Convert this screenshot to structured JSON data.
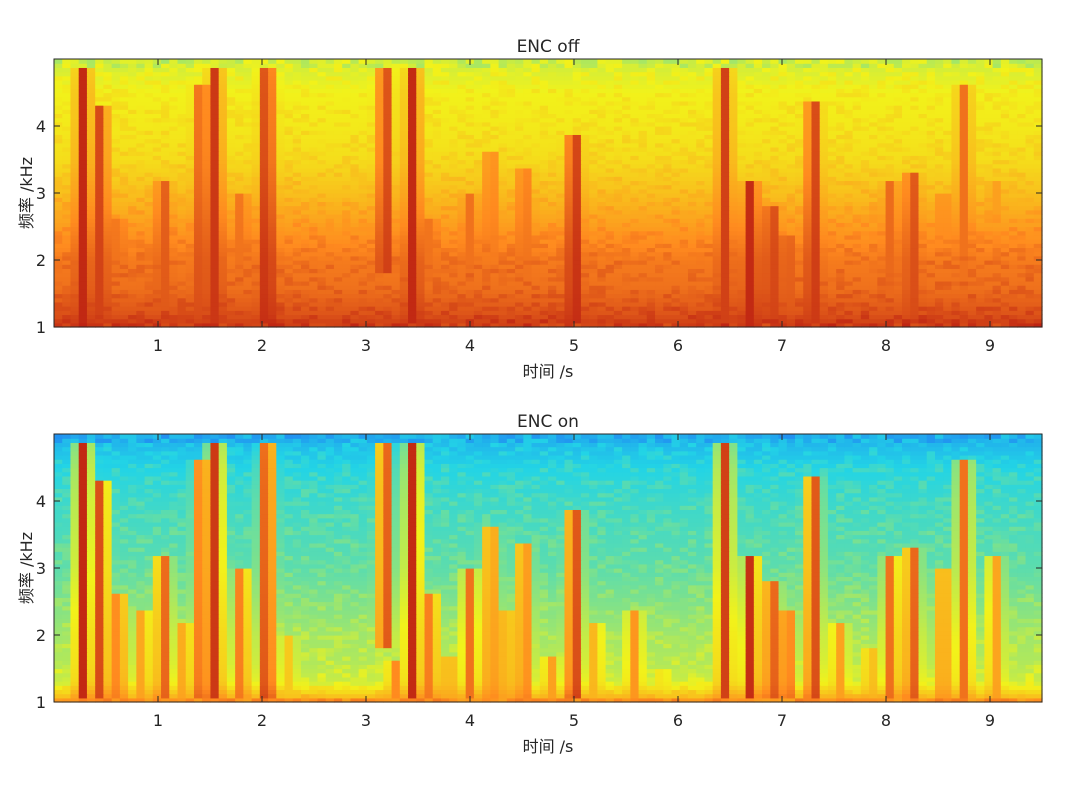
{
  "chart_data": [
    {
      "type": "heatmap",
      "title": "ENC off",
      "xlabel": "时间 /s",
      "ylabel": "频率 /kHz",
      "xlim": [
        0,
        9.5
      ],
      "ylim": [
        1,
        5
      ],
      "xticks": [
        1,
        2,
        3,
        4,
        5,
        6,
        7,
        8,
        9
      ],
      "yticks": [
        1,
        2,
        3,
        4
      ],
      "colormap": "jet",
      "colors": {
        "low": "#1f3fff",
        "mid_low": "#22d4e6",
        "mid": "#f2f21a",
        "mid_high": "#ff8a1f",
        "high": "#b21010"
      },
      "background_level": {
        "frequency_khz": [
          1.0,
          1.2,
          1.6,
          2.0,
          2.4,
          3.0,
          3.5,
          4.0,
          4.5,
          5.0
        ],
        "level": [
          0.92,
          0.86,
          0.8,
          0.78,
          0.72,
          0.62,
          0.55,
          0.52,
          0.5,
          0.45
        ]
      },
      "speech_events": [
        {
          "t": 0.28,
          "f_low": 1.05,
          "f_high": 4.9,
          "strength": 0.95
        },
        {
          "t": 0.45,
          "f_low": 1.05,
          "f_high": 4.3,
          "strength": 0.9
        },
        {
          "t": 0.62,
          "f_low": 1.05,
          "f_high": 2.6,
          "strength": 0.8
        },
        {
          "t": 0.85,
          "f_low": 1.05,
          "f_high": 2.4,
          "strength": 0.7
        },
        {
          "t": 1.05,
          "f_low": 1.05,
          "f_high": 3.2,
          "strength": 0.85
        },
        {
          "t": 1.25,
          "f_low": 1.05,
          "f_high": 2.2,
          "strength": 0.7
        },
        {
          "t": 1.42,
          "f_low": 1.05,
          "f_high": 4.6,
          "strength": 0.88
        },
        {
          "t": 1.55,
          "f_low": 1.05,
          "f_high": 4.9,
          "strength": 0.92
        },
        {
          "t": 1.8,
          "f_low": 1.05,
          "f_high": 3.0,
          "strength": 0.8
        },
        {
          "t": 2.05,
          "f_low": 1.05,
          "f_high": 4.9,
          "strength": 0.95
        },
        {
          "t": 2.25,
          "f_low": 1.05,
          "f_high": 2.0,
          "strength": 0.6
        },
        {
          "t": 3.18,
          "f_low": 1.8,
          "f_high": 4.9,
          "strength": 0.92
        },
        {
          "t": 3.28,
          "f_low": 1.05,
          "f_high": 1.6,
          "strength": 0.75
        },
        {
          "t": 3.45,
          "f_low": 1.05,
          "f_high": 4.9,
          "strength": 0.95
        },
        {
          "t": 3.62,
          "f_low": 1.05,
          "f_high": 2.6,
          "strength": 0.8
        },
        {
          "t": 3.8,
          "f_low": 1.05,
          "f_high": 1.7,
          "strength": 0.7
        },
        {
          "t": 4.0,
          "f_low": 1.05,
          "f_high": 3.0,
          "strength": 0.8
        },
        {
          "t": 4.2,
          "f_low": 1.05,
          "f_high": 3.6,
          "strength": 0.78
        },
        {
          "t": 4.35,
          "f_low": 1.05,
          "f_high": 2.4,
          "strength": 0.72
        },
        {
          "t": 4.52,
          "f_low": 1.05,
          "f_high": 3.4,
          "strength": 0.8
        },
        {
          "t": 4.78,
          "f_low": 1.05,
          "f_high": 1.7,
          "strength": 0.7
        },
        {
          "t": 5.0,
          "f_low": 1.05,
          "f_high": 3.9,
          "strength": 0.95
        },
        {
          "t": 5.2,
          "f_low": 1.05,
          "f_high": 2.2,
          "strength": 0.65
        },
        {
          "t": 5.58,
          "f_low": 1.05,
          "f_high": 2.4,
          "strength": 0.72
        },
        {
          "t": 5.85,
          "f_low": 1.05,
          "f_high": 1.5,
          "strength": 0.55
        },
        {
          "t": 6.45,
          "f_low": 1.05,
          "f_high": 4.9,
          "strength": 0.9
        },
        {
          "t": 6.7,
          "f_low": 1.05,
          "f_high": 3.2,
          "strength": 0.95
        },
        {
          "t": 6.9,
          "f_low": 1.05,
          "f_high": 2.8,
          "strength": 0.9
        },
        {
          "t": 7.05,
          "f_low": 1.05,
          "f_high": 2.4,
          "strength": 0.85
        },
        {
          "t": 7.3,
          "f_low": 1.05,
          "f_high": 4.4,
          "strength": 0.92
        },
        {
          "t": 7.55,
          "f_low": 1.05,
          "f_high": 2.2,
          "strength": 0.7
        },
        {
          "t": 7.85,
          "f_low": 1.05,
          "f_high": 1.8,
          "strength": 0.65
        },
        {
          "t": 8.05,
          "f_low": 1.05,
          "f_high": 3.2,
          "strength": 0.82
        },
        {
          "t": 8.25,
          "f_low": 1.05,
          "f_high": 3.3,
          "strength": 0.88
        },
        {
          "t": 8.55,
          "f_low": 1.05,
          "f_high": 3.0,
          "strength": 0.75
        },
        {
          "t": 8.75,
          "f_low": 1.05,
          "f_high": 4.6,
          "strength": 0.8
        },
        {
          "t": 9.05,
          "f_low": 1.05,
          "f_high": 3.2,
          "strength": 0.7
        }
      ]
    },
    {
      "type": "heatmap",
      "title": "ENC on",
      "xlabel": "时间 /s",
      "ylabel": "频率 /kHz",
      "xlim": [
        0,
        9.5
      ],
      "ylim": [
        1,
        5
      ],
      "xticks": [
        1,
        2,
        3,
        4,
        5,
        6,
        7,
        8,
        9
      ],
      "yticks": [
        1,
        2,
        3,
        4
      ],
      "colormap": "jet",
      "colors": {
        "low": "#1f3fff",
        "mid_low": "#22d4e6",
        "mid": "#f2f21a",
        "mid_high": "#ff8a1f",
        "high": "#b21010"
      },
      "background_level": {
        "frequency_khz": [
          1.0,
          1.1,
          1.3,
          1.6,
          2.0,
          2.5,
          3.0,
          3.5,
          4.0,
          4.5,
          5.0
        ],
        "level": [
          0.8,
          0.6,
          0.45,
          0.42,
          0.4,
          0.36,
          0.32,
          0.3,
          0.28,
          0.25,
          0.18
        ]
      },
      "speech_events": [
        {
          "t": 0.28,
          "f_low": 1.05,
          "f_high": 4.9,
          "strength": 0.95
        },
        {
          "t": 0.45,
          "f_low": 1.05,
          "f_high": 4.3,
          "strength": 0.9
        },
        {
          "t": 0.62,
          "f_low": 1.05,
          "f_high": 2.6,
          "strength": 0.8
        },
        {
          "t": 0.85,
          "f_low": 1.05,
          "f_high": 2.4,
          "strength": 0.7
        },
        {
          "t": 1.05,
          "f_low": 1.05,
          "f_high": 3.2,
          "strength": 0.85
        },
        {
          "t": 1.25,
          "f_low": 1.05,
          "f_high": 2.2,
          "strength": 0.7
        },
        {
          "t": 1.42,
          "f_low": 1.05,
          "f_high": 4.6,
          "strength": 0.88
        },
        {
          "t": 1.55,
          "f_low": 1.05,
          "f_high": 4.9,
          "strength": 0.92
        },
        {
          "t": 1.8,
          "f_low": 1.05,
          "f_high": 3.0,
          "strength": 0.8
        },
        {
          "t": 2.05,
          "f_low": 1.05,
          "f_high": 4.9,
          "strength": 0.95
        },
        {
          "t": 2.25,
          "f_low": 1.05,
          "f_high": 2.0,
          "strength": 0.6
        },
        {
          "t": 3.18,
          "f_low": 1.8,
          "f_high": 4.9,
          "strength": 0.92
        },
        {
          "t": 3.28,
          "f_low": 1.05,
          "f_high": 1.6,
          "strength": 0.75
        },
        {
          "t": 3.45,
          "f_low": 1.05,
          "f_high": 4.9,
          "strength": 0.95
        },
        {
          "t": 3.62,
          "f_low": 1.05,
          "f_high": 2.6,
          "strength": 0.8
        },
        {
          "t": 3.8,
          "f_low": 1.05,
          "f_high": 1.7,
          "strength": 0.7
        },
        {
          "t": 4.0,
          "f_low": 1.05,
          "f_high": 3.0,
          "strength": 0.8
        },
        {
          "t": 4.2,
          "f_low": 1.05,
          "f_high": 3.6,
          "strength": 0.78
        },
        {
          "t": 4.35,
          "f_low": 1.05,
          "f_high": 2.4,
          "strength": 0.72
        },
        {
          "t": 4.52,
          "f_low": 1.05,
          "f_high": 3.4,
          "strength": 0.8
        },
        {
          "t": 4.78,
          "f_low": 1.05,
          "f_high": 1.7,
          "strength": 0.7
        },
        {
          "t": 5.0,
          "f_low": 1.05,
          "f_high": 3.9,
          "strength": 0.95
        },
        {
          "t": 5.2,
          "f_low": 1.05,
          "f_high": 2.2,
          "strength": 0.65
        },
        {
          "t": 5.58,
          "f_low": 1.05,
          "f_high": 2.4,
          "strength": 0.72
        },
        {
          "t": 5.85,
          "f_low": 1.05,
          "f_high": 1.5,
          "strength": 0.55
        },
        {
          "t": 6.45,
          "f_low": 1.05,
          "f_high": 4.9,
          "strength": 0.9
        },
        {
          "t": 6.7,
          "f_low": 1.05,
          "f_high": 3.2,
          "strength": 0.95
        },
        {
          "t": 6.9,
          "f_low": 1.05,
          "f_high": 2.8,
          "strength": 0.9
        },
        {
          "t": 7.05,
          "f_low": 1.05,
          "f_high": 2.4,
          "strength": 0.85
        },
        {
          "t": 7.3,
          "f_low": 1.05,
          "f_high": 4.4,
          "strength": 0.92
        },
        {
          "t": 7.55,
          "f_low": 1.05,
          "f_high": 2.2,
          "strength": 0.7
        },
        {
          "t": 7.85,
          "f_low": 1.05,
          "f_high": 1.8,
          "strength": 0.65
        },
        {
          "t": 8.05,
          "f_low": 1.05,
          "f_high": 3.2,
          "strength": 0.82
        },
        {
          "t": 8.25,
          "f_low": 1.05,
          "f_high": 3.3,
          "strength": 0.88
        },
        {
          "t": 8.55,
          "f_low": 1.05,
          "f_high": 3.0,
          "strength": 0.75
        },
        {
          "t": 8.75,
          "f_low": 1.05,
          "f_high": 4.6,
          "strength": 0.8
        },
        {
          "t": 9.05,
          "f_low": 1.05,
          "f_high": 3.2,
          "strength": 0.7
        }
      ]
    }
  ]
}
